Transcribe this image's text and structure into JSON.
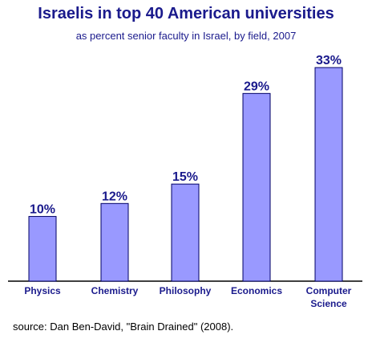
{
  "chart_data": {
    "type": "bar",
    "title": "Israelis in top 40 American universities",
    "subtitle": "as percent senior faculty in Israel, by field, 2007",
    "categories": [
      "Physics",
      "Chemistry",
      "Philosophy",
      "Economics",
      "Computer Science"
    ],
    "category_lines": [
      [
        "Physics"
      ],
      [
        "Chemistry"
      ],
      [
        "Philosophy"
      ],
      [
        "Economics"
      ],
      [
        "Computer",
        "Science"
      ]
    ],
    "values": [
      10,
      12,
      15,
      29,
      33
    ],
    "value_labels": [
      "10%",
      "12%",
      "15%",
      "29%",
      "33%"
    ],
    "ylim": [
      0,
      35
    ],
    "grid": false,
    "legend": "none",
    "xlabel": "",
    "ylabel": ""
  },
  "source": "source: Dan Ben-David, \"Brain Drained\" (2008).",
  "colors": {
    "bar_fill": "#9999ff",
    "bar_stroke": "#000066",
    "text": "#1a1a8c",
    "axis": "#000000"
  }
}
